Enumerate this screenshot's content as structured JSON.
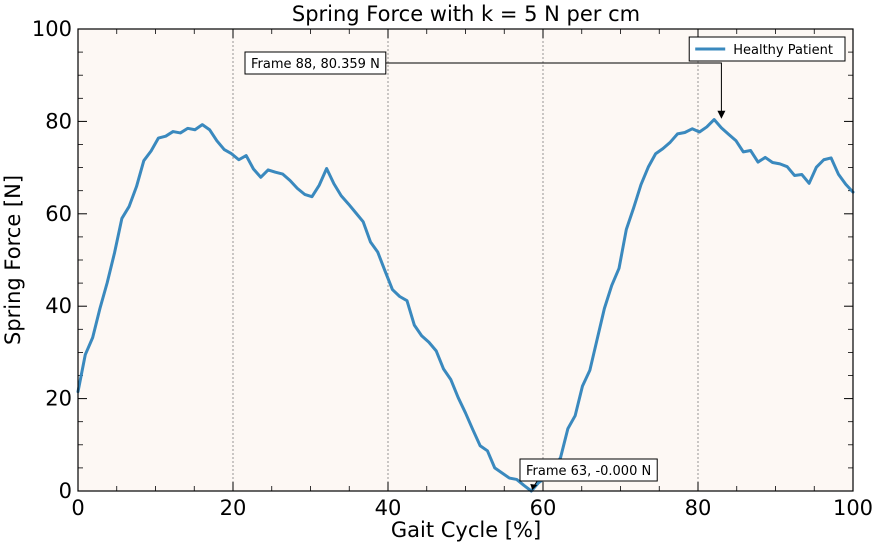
{
  "chart_data": {
    "type": "line",
    "title": "Spring Force with k = 5 N per cm",
    "xlabel": "Gait Cycle [%]",
    "ylabel": "Spring Force [N]",
    "xlim": [
      0,
      100
    ],
    "ylim": [
      0,
      100
    ],
    "xticks": [
      0,
      20,
      40,
      60,
      80,
      100
    ],
    "yticks": [
      0,
      20,
      40,
      60,
      80,
      100
    ],
    "vertical_lines": [
      20,
      40,
      60,
      80
    ],
    "grid": false,
    "legend_position": "top-right",
    "background_color": "#fdf8f4",
    "series": [
      {
        "name": "Healthy Patient",
        "color": "#3a89be",
        "x": [
          0,
          0.94,
          1.89,
          2.83,
          3.77,
          4.72,
          5.66,
          6.6,
          7.55,
          8.49,
          9.43,
          10.38,
          11.32,
          12.26,
          13.21,
          14.15,
          15.09,
          16.04,
          16.98,
          17.92,
          18.87,
          19.81,
          20.75,
          21.7,
          22.64,
          23.58,
          24.53,
          25.47,
          26.42,
          27.36,
          28.3,
          29.25,
          30.19,
          31.13,
          32.08,
          33.02,
          33.96,
          34.91,
          35.85,
          36.79,
          37.74,
          38.68,
          39.62,
          40.57,
          41.51,
          42.45,
          43.4,
          44.34,
          45.28,
          46.23,
          47.17,
          48.11,
          49.06,
          50,
          50.94,
          51.89,
          52.83,
          53.77,
          54.72,
          55.66,
          56.6,
          57.55,
          58.49,
          59.43,
          60.38,
          61.32,
          62.26,
          63.21,
          64.15,
          65.09,
          66.04,
          66.98,
          67.92,
          68.87,
          69.81,
          70.75,
          71.7,
          72.64,
          73.58,
          74.53,
          75.47,
          76.42,
          77.36,
          78.3,
          79.25,
          80.19,
          81.13,
          82.08,
          83.02,
          83.96,
          84.91,
          85.85,
          86.79,
          87.74,
          88.68,
          89.62,
          90.57,
          91.51,
          92.45,
          93.4,
          94.34,
          95.28,
          96.23,
          97.17,
          98.11,
          99.06,
          100
        ],
        "y": [
          21.5,
          29.5,
          33.2,
          39.5,
          45.1,
          51.6,
          59,
          61.6,
          65.9,
          71.5,
          73.6,
          76.4,
          76.8,
          77.8,
          77.5,
          78.5,
          78.2,
          79.3,
          78.2,
          75.8,
          73.9,
          73,
          71.7,
          72.6,
          69.7,
          67.9,
          69.5,
          69,
          68.6,
          67.2,
          65.5,
          64.2,
          63.7,
          66.2,
          69.8,
          66.5,
          63.9,
          62.1,
          60.2,
          58.3,
          53.9,
          51.7,
          47.6,
          43.6,
          42.1,
          41.2,
          35.9,
          33.6,
          32.2,
          30.3,
          26.4,
          24.1,
          20.2,
          16.9,
          13.3,
          9.8,
          8.7,
          5,
          3.9,
          2.8,
          2.5,
          1.2,
          0,
          1.8,
          2.9,
          4.8,
          7.2,
          13.5,
          16.3,
          22.7,
          26.1,
          32.8,
          39.5,
          44.5,
          48.2,
          56.6,
          61.3,
          66.3,
          70.1,
          73,
          74.1,
          75.5,
          77.3,
          77.6,
          78.4,
          77.7,
          78.8,
          80.4,
          78.6,
          77.2,
          75.8,
          73.4,
          73.7,
          71.2,
          72.2,
          71.1,
          70.8,
          70.2,
          68.3,
          68.5,
          66.6,
          70.1,
          71.7,
          72.1,
          68.6,
          66.4,
          64.7
        ]
      }
    ],
    "annotations": [
      {
        "text": "Frame 88, 80.359 N",
        "x": 83.02,
        "y": 80.359
      },
      {
        "text": "Frame 63, -0.000 N",
        "x": 58.49,
        "y": 0
      }
    ]
  }
}
